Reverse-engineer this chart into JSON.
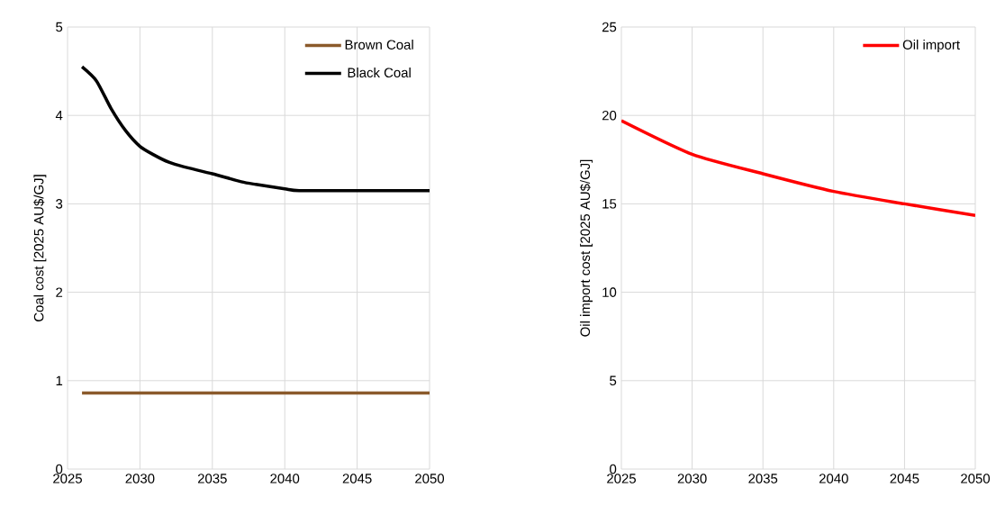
{
  "chart_data": [
    {
      "type": "line",
      "ylabel": "Coal cost [2025 AU$/GJ]",
      "xlim": [
        2025,
        2050
      ],
      "ylim": [
        0,
        5
      ],
      "xticks": [
        2025,
        2030,
        2035,
        2040,
        2045,
        2050
      ],
      "yticks": [
        0,
        1,
        2,
        3,
        4,
        5
      ],
      "grid": true,
      "legend": "top right",
      "series": [
        {
          "name": "Brown Coal",
          "color": "#8b5a2b",
          "x": [
            2026,
            2030,
            2035,
            2040,
            2045,
            2050
          ],
          "values": [
            0.86,
            0.86,
            0.86,
            0.86,
            0.86,
            0.86
          ]
        },
        {
          "name": "Black Coal",
          "color": "#000000",
          "x": [
            2026,
            2027,
            2028,
            2029,
            2030,
            2031,
            2032,
            2033,
            2035,
            2037,
            2038,
            2040,
            2041,
            2045,
            2050
          ],
          "values": [
            4.55,
            4.39,
            4.08,
            3.83,
            3.65,
            3.55,
            3.47,
            3.42,
            3.34,
            3.25,
            3.22,
            3.17,
            3.15,
            3.15,
            3.15
          ]
        }
      ]
    },
    {
      "type": "line",
      "ylabel": "Oil import cost [2025 AU$/GJ]",
      "xlim": [
        2025,
        2050
      ],
      "ylim": [
        0,
        25
      ],
      "xticks": [
        2025,
        2030,
        2035,
        2040,
        2045,
        2050
      ],
      "yticks": [
        0,
        5,
        10,
        15,
        20,
        25
      ],
      "grid": true,
      "legend": "top right",
      "series": [
        {
          "name": "Oil import",
          "color": "#ff0000",
          "x": [
            2025,
            2030,
            2035,
            2040,
            2045,
            2050
          ],
          "values": [
            19.7,
            17.8,
            16.7,
            15.7,
            15.0,
            14.35
          ]
        }
      ]
    }
  ]
}
